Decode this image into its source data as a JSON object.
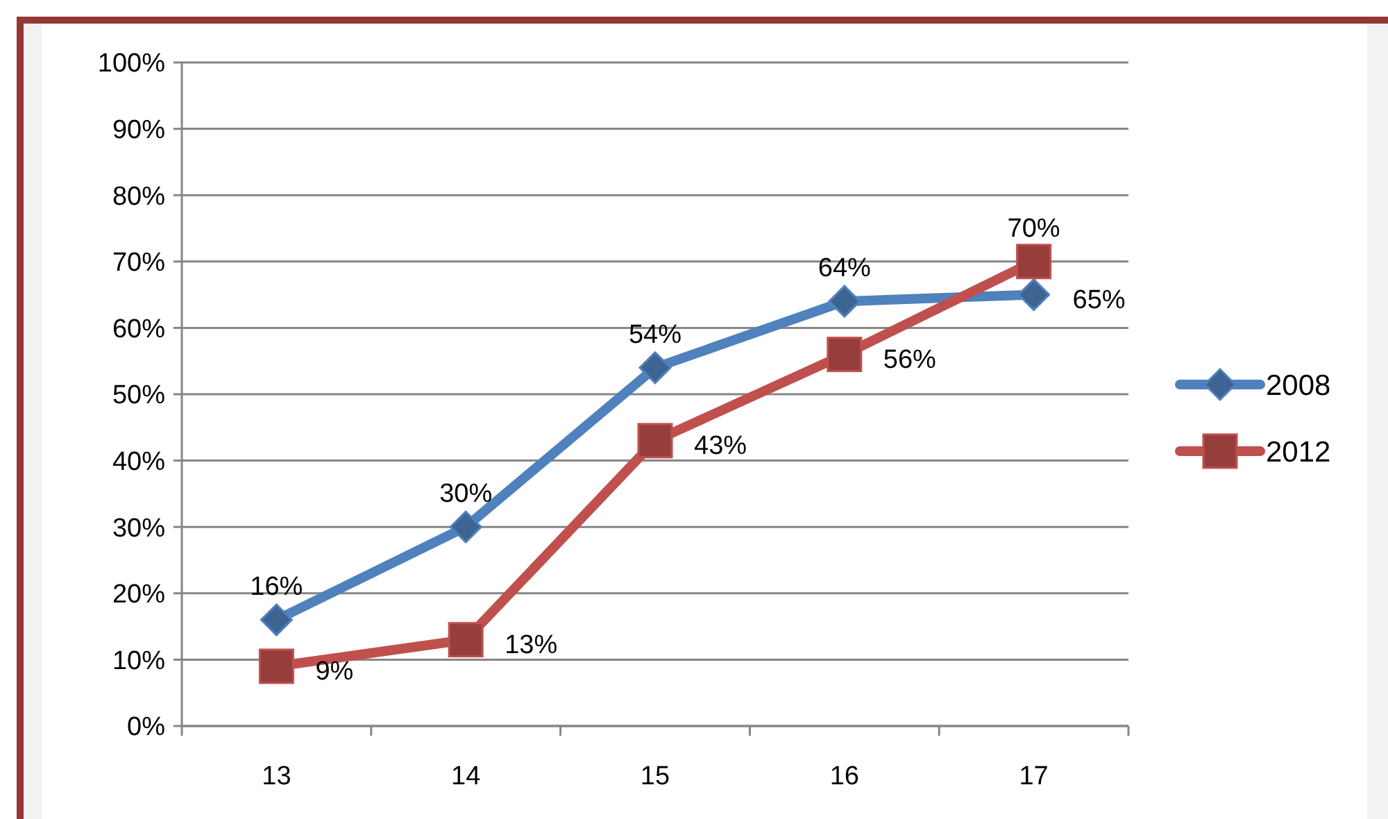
{
  "chart_data": {
    "type": "line",
    "categories": [
      "13",
      "14",
      "15",
      "16",
      "17"
    ],
    "series": [
      {
        "name": "2008",
        "color": "#4f81bd",
        "marker": "diamond",
        "values": [
          16,
          30,
          54,
          64,
          65
        ],
        "value_labels": [
          "16%",
          "30%",
          "54%",
          "64%",
          "65%"
        ]
      },
      {
        "name": "2012",
        "color": "#c0504d",
        "marker": "square",
        "values": [
          9,
          13,
          43,
          56,
          70
        ],
        "value_labels": [
          "9%",
          "13%",
          "43%",
          "56%",
          "70%"
        ]
      }
    ],
    "ylim": [
      0,
      100
    ],
    "yticks": [
      {
        "value": 0,
        "label": "0%"
      },
      {
        "value": 10,
        "label": "10%"
      },
      {
        "value": 20,
        "label": "20%"
      },
      {
        "value": 30,
        "label": "30%"
      },
      {
        "value": 40,
        "label": "40%"
      },
      {
        "value": 50,
        "label": "50%"
      },
      {
        "value": 60,
        "label": "60%"
      },
      {
        "value": 70,
        "label": "70%"
      },
      {
        "value": 80,
        "label": "80%"
      },
      {
        "value": 90,
        "label": "90%"
      },
      {
        "value": 100,
        "label": "100%"
      }
    ],
    "grid": "y",
    "legend": "right"
  }
}
